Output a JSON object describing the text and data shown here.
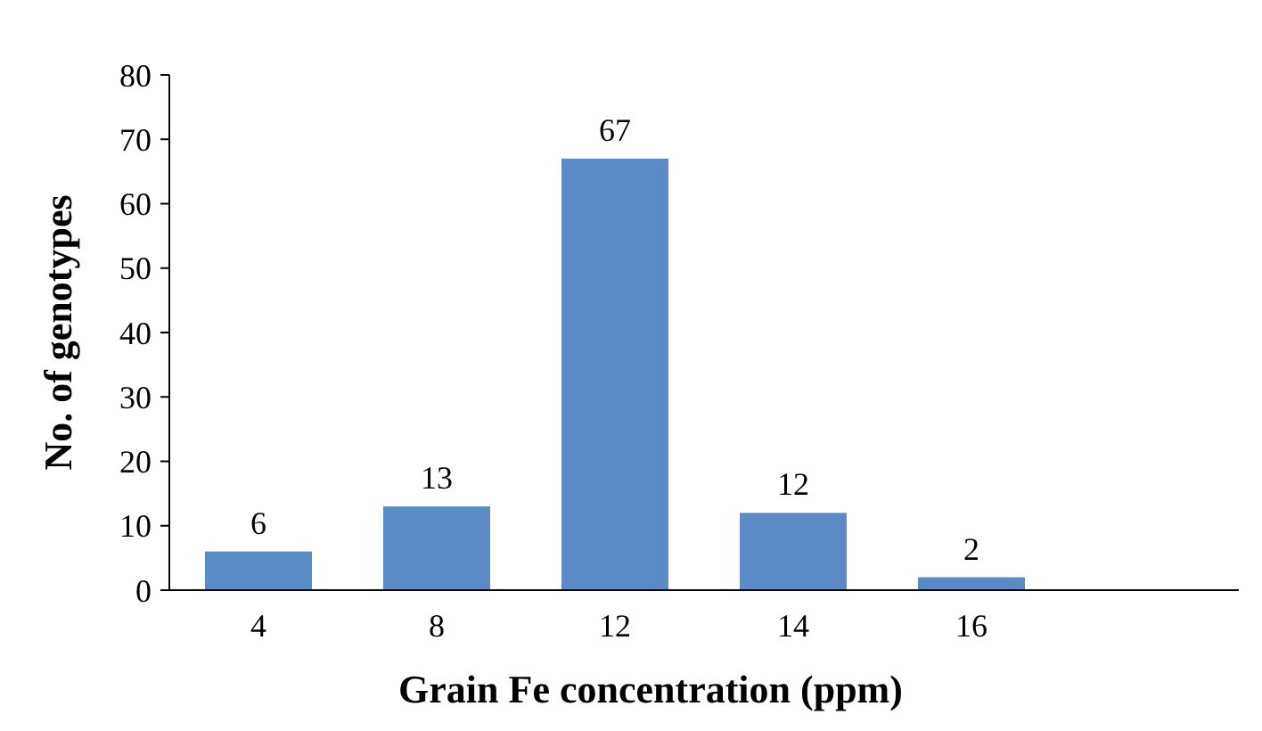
{
  "chart_data": {
    "type": "bar",
    "xlabel": "Grain Fe concentration (ppm)",
    "ylabel": "No. of genotypes",
    "categories": [
      "4",
      "8",
      "12",
      "14",
      "16",
      null
    ],
    "values": [
      6,
      13,
      67,
      12,
      2,
      null
    ],
    "color": "#5b8bc7",
    "ylim": [
      0,
      80
    ],
    "yticks": [
      0,
      10,
      20,
      30,
      40,
      50,
      60,
      70,
      80
    ],
    "data_labels": true,
    "grid": false
  }
}
